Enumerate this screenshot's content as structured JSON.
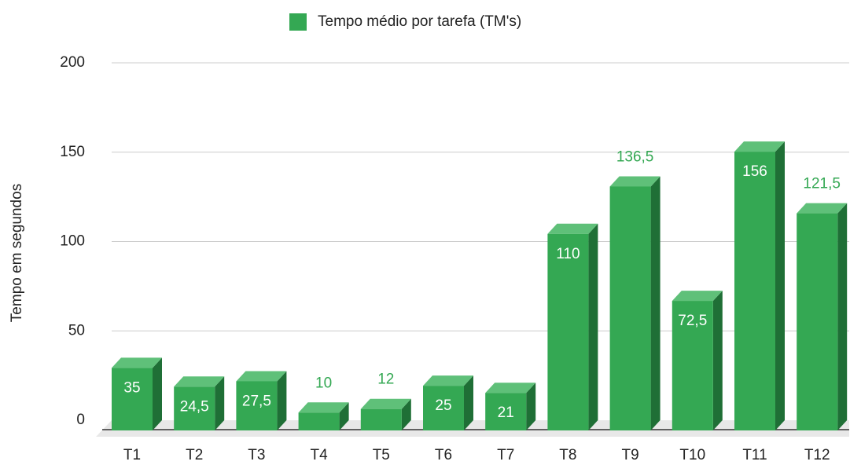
{
  "chart_data": {
    "type": "bar3d",
    "legend": "Tempo médio por tarefa (TM's)",
    "y_label": "Tempo em segundos",
    "categories": [
      "T1",
      "T2",
      "T3",
      "T4",
      "T5",
      "T6",
      "T7",
      "T8",
      "T9",
      "T10",
      "T11",
      "T12"
    ],
    "values": [
      35,
      24.5,
      27.5,
      10,
      12,
      25,
      21,
      110,
      136.5,
      72.5,
      156,
      121.5
    ],
    "value_labels": [
      "35",
      "24,5",
      "27,5",
      "10",
      "12",
      "25",
      "21",
      "110",
      "136,5",
      "72,5",
      "156",
      "121,5"
    ],
    "value_label_position": [
      "inside",
      "inside",
      "inside",
      "outside",
      "outside",
      "inside",
      "inside",
      "inside",
      "outside",
      "inside",
      "inside",
      "outside"
    ],
    "color": "#34a853",
    "ylim": [
      0,
      200
    ],
    "yticks": [
      0,
      50,
      100,
      150,
      200
    ],
    "grid": true
  }
}
